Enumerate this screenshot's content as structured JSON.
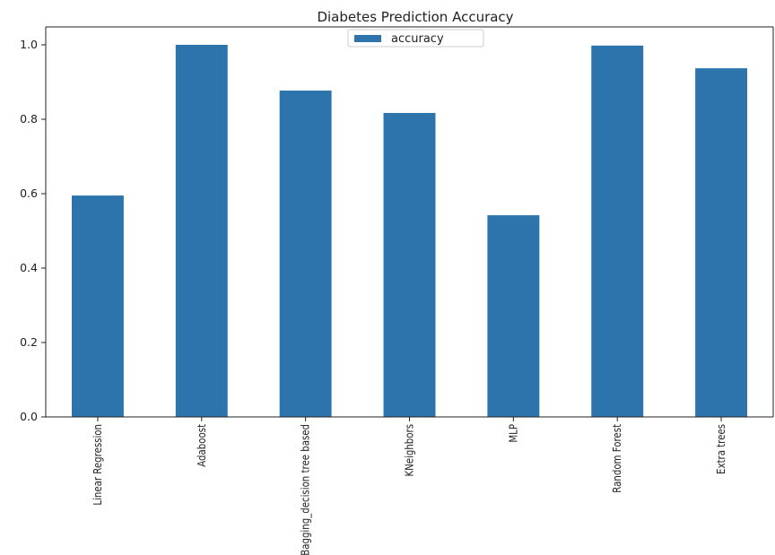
{
  "chart_data": {
    "type": "bar",
    "title": "Diabetes Prediction Accuracy",
    "xlabel": "",
    "ylabel": "",
    "categories": [
      "Linear Regression",
      "Adaboost",
      "Bagging_decision tree based",
      "KNeighbors",
      "MLP",
      "Random Forest",
      "Extra trees"
    ],
    "series": [
      {
        "name": "accuracy",
        "values": [
          0.595,
          1.0,
          0.877,
          0.817,
          0.542,
          0.998,
          0.937
        ],
        "color": "#2c74ab"
      }
    ],
    "ylim": [
      0,
      1.0
    ],
    "yticks": [
      0.0,
      0.2,
      0.4,
      0.6,
      0.8,
      1.0
    ],
    "ytick_labels": [
      "0.0",
      "0.2",
      "0.4",
      "0.6",
      "0.8",
      "1.0"
    ],
    "grid": false,
    "legend_position": "top-center"
  }
}
